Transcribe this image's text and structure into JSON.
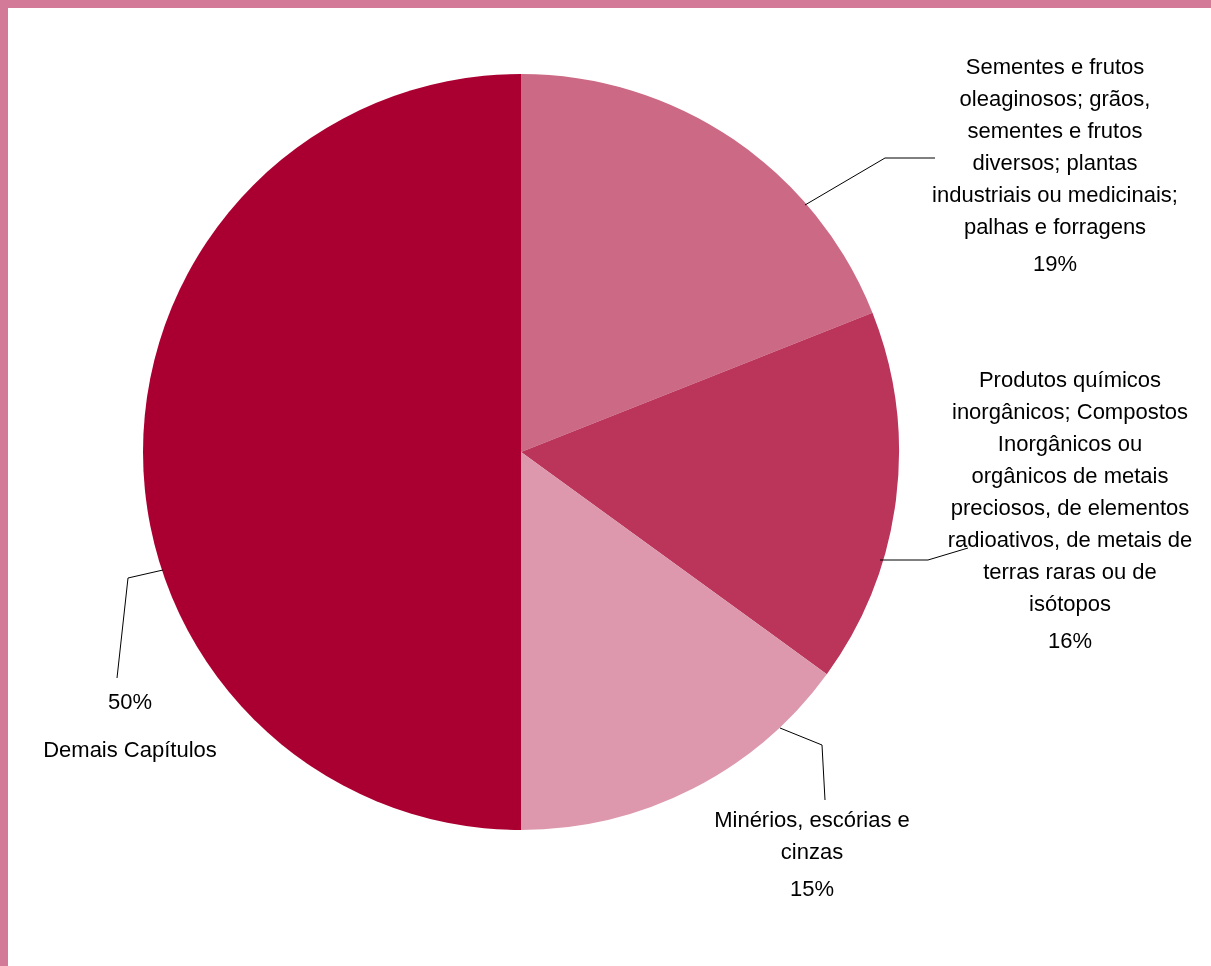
{
  "chart_data": {
    "type": "pie",
    "categories": [
      "Sementes e frutos oleaginosos; grãos, sementes e frutos diversos; plantas industriais ou medicinais; palhas e forragens",
      "Produtos químicos inorgânicos; Compostos Inorgânicos ou orgânicos de metais preciosos, de elementos radioativos, de metais de terras raras ou de isótopos",
      "Minérios, escórias e cinzas",
      "Demais Capítulos"
    ],
    "values": [
      19,
      16,
      15,
      50
    ],
    "value_labels": [
      "19%",
      "16%",
      "15%",
      "50%"
    ],
    "colors": [
      "#cc6984",
      "#bb345a",
      "#dd98ad",
      "#aa0031"
    ],
    "legend": false
  }
}
